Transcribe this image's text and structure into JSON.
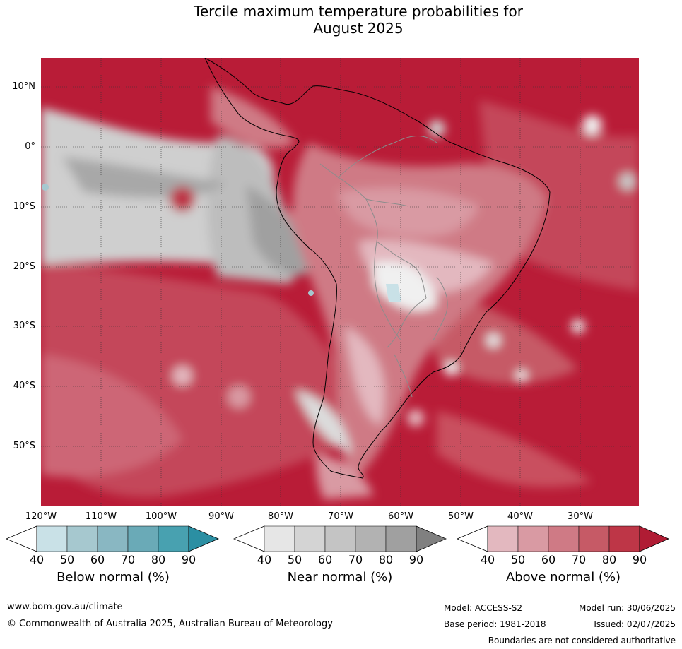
{
  "title_line1": "Tercile maximum temperature probabilities for",
  "title_line2": "August 2025",
  "lat_labels": [
    "10°N",
    "0°",
    "10°S",
    "20°S",
    "30°S",
    "40°S",
    "50°S"
  ],
  "lon_labels": [
    "120°W",
    "110°W",
    "100°W",
    "90°W",
    "80°W",
    "70°W",
    "60°W",
    "50°W",
    "40°W",
    "30°W"
  ],
  "legends": {
    "below": {
      "title": "Below normal (%)",
      "ticks": [
        "40",
        "50",
        "60",
        "70",
        "80",
        "90"
      ],
      "colors": [
        "#c9e1e7",
        "#a6c8cf",
        "#89b7c2",
        "#6aaab7",
        "#48a1b0",
        "#2b8fa3"
      ]
    },
    "near": {
      "title": "Near normal (%)",
      "ticks": [
        "40",
        "50",
        "60",
        "70",
        "80",
        "90"
      ],
      "colors": [
        "#e6e6e6",
        "#d4d4d4",
        "#c4c4c4",
        "#b2b2b2",
        "#a0a0a0",
        "#808080"
      ]
    },
    "above": {
      "title": "Above normal (%)",
      "ticks": [
        "40",
        "50",
        "60",
        "70",
        "80",
        "90"
      ],
      "colors": [
        "#e3b8bf",
        "#d99aa3",
        "#cf7a85",
        "#c65a66",
        "#be3647",
        "#b01c34"
      ]
    }
  },
  "footer": {
    "website": "www.bom.gov.au/climate",
    "copyright": "© Commonwealth of Australia 2025, Australian Bureau of Meteorology",
    "model": "Model: ACCESS-S2",
    "base_period": "Base period: 1981-2018",
    "model_run": "Model run: 30/06/2025",
    "issued": "Issued: 02/07/2025",
    "disclaimer": "Boundaries are not considered authoritative"
  }
}
